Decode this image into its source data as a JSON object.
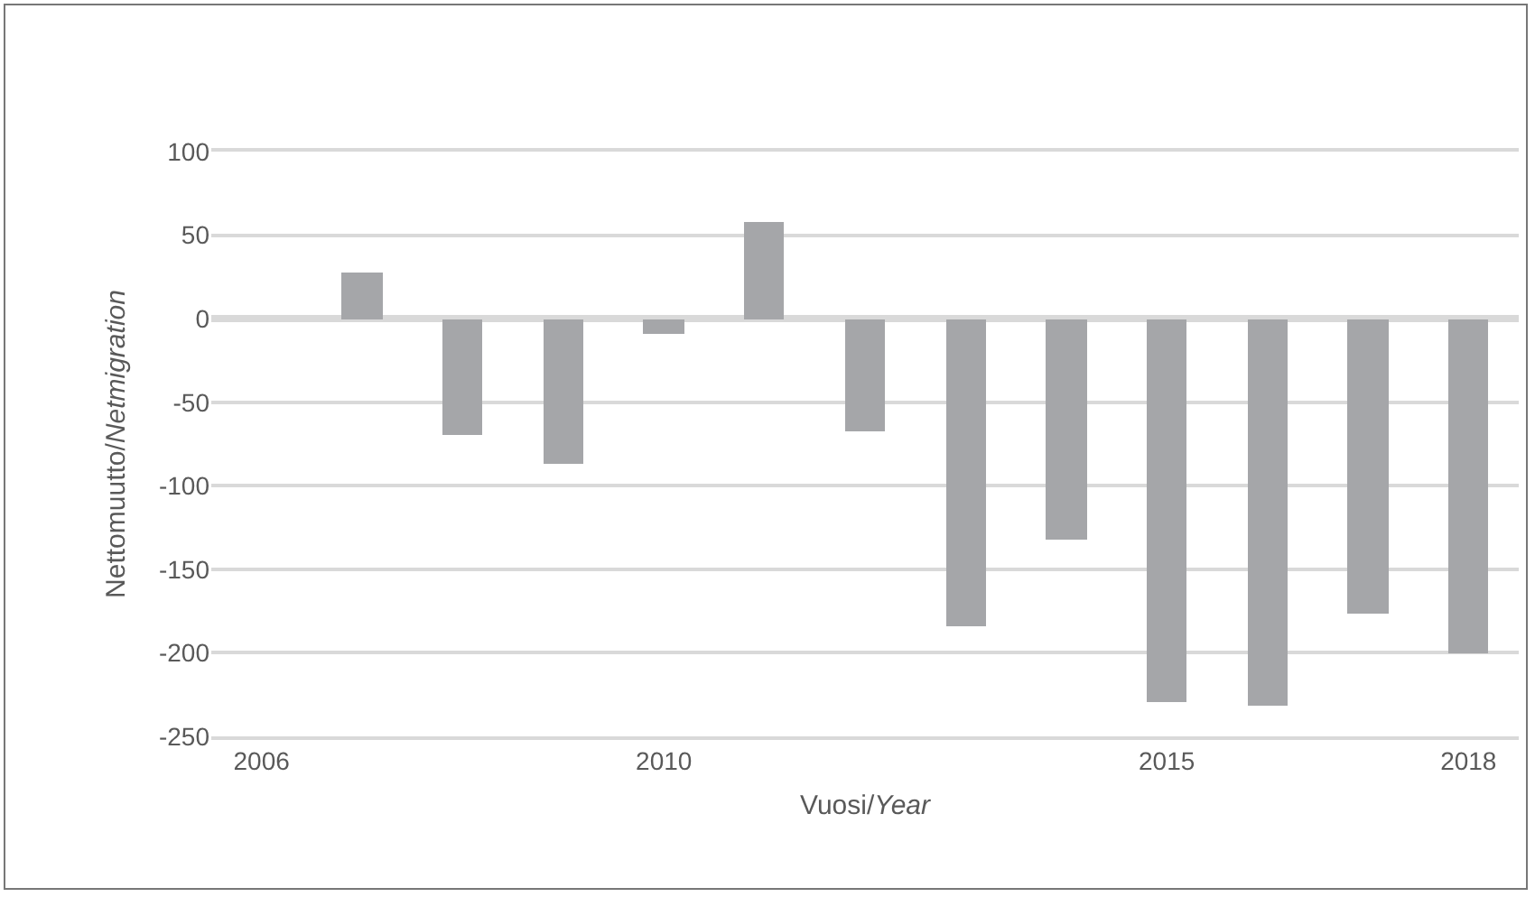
{
  "chart_data": {
    "type": "bar",
    "xlabel": "Vuosi/Year",
    "ylabel": "Nettomuutto/Netmigration",
    "x": [
      2007,
      2008,
      2009,
      2010,
      2011,
      2012,
      2013,
      2014,
      2015,
      2016,
      2017,
      2018
    ],
    "series": [
      {
        "color": "#a5a6a9",
        "values": [
          28,
          -70,
          -87,
          -9,
          58,
          -67,
          -184,
          -132,
          -230,
          -232,
          -177,
          -200
        ]
      }
    ],
    "xlim": [
      2005.5,
      2018.5
    ],
    "xticks": [
      2006,
      2010,
      2015,
      2018
    ],
    "ylim": [
      -250,
      100
    ],
    "yticks": [
      -250,
      -200,
      -150,
      -100,
      -50,
      0,
      50,
      100
    ],
    "grid": "y"
  }
}
